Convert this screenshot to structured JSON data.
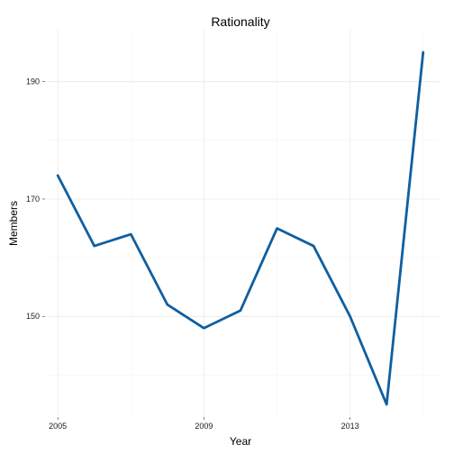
{
  "chart_data": {
    "type": "line",
    "title": "Rationality",
    "xlabel": "Year",
    "ylabel": "Members",
    "x": [
      2005,
      2006,
      2007,
      2008,
      2009,
      2010,
      2011,
      2012,
      2013,
      2014,
      2015
    ],
    "series": [
      {
        "values": [
          174,
          162,
          164,
          152,
          148,
          151,
          165,
          162,
          150,
          135,
          195
        ],
        "color": "#0f5fa0"
      }
    ],
    "xticks": [
      2005,
      2009,
      2013
    ],
    "xtick_labels": [
      "2005",
      "2009",
      "2013"
    ],
    "yticks": [
      150,
      170,
      190
    ],
    "ytick_labels": [
      "150",
      "170",
      "190"
    ],
    "xlim": [
      2004.7,
      2015.45
    ],
    "ylim": [
      133,
      199
    ],
    "grid": true,
    "legend": "none"
  }
}
